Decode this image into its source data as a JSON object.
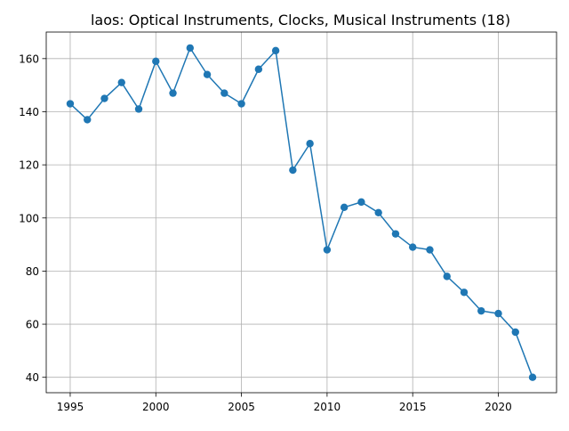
{
  "chart_data": {
    "type": "line",
    "title": "laos: Optical Instruments, Clocks, Musical Instruments (18)",
    "xlabel": "",
    "ylabel": "",
    "x": [
      1995,
      1996,
      1997,
      1998,
      1999,
      2000,
      2001,
      2002,
      2003,
      2004,
      2005,
      2006,
      2007,
      2008,
      2009,
      2010,
      2011,
      2012,
      2013,
      2014,
      2015,
      2016,
      2017,
      2018,
      2019,
      2020,
      2021,
      2022
    ],
    "series": [
      {
        "values": [
          143,
          137,
          145,
          151,
          141,
          159,
          147,
          164,
          154,
          147,
          143,
          156,
          163,
          118,
          128,
          88,
          104,
          106,
          102,
          94,
          89,
          88,
          78,
          72,
          65,
          64,
          57,
          40
        ],
        "color": "#1f77b4",
        "marker": "circle"
      }
    ],
    "xlim": [
      1993.6,
      2023.4
    ],
    "ylim": [
      34.2,
      170.0
    ],
    "xticks": [
      1995,
      2000,
      2005,
      2010,
      2015,
      2020
    ],
    "yticks": [
      40,
      60,
      80,
      100,
      120,
      140,
      160
    ],
    "grid": true,
    "legend": "none"
  }
}
